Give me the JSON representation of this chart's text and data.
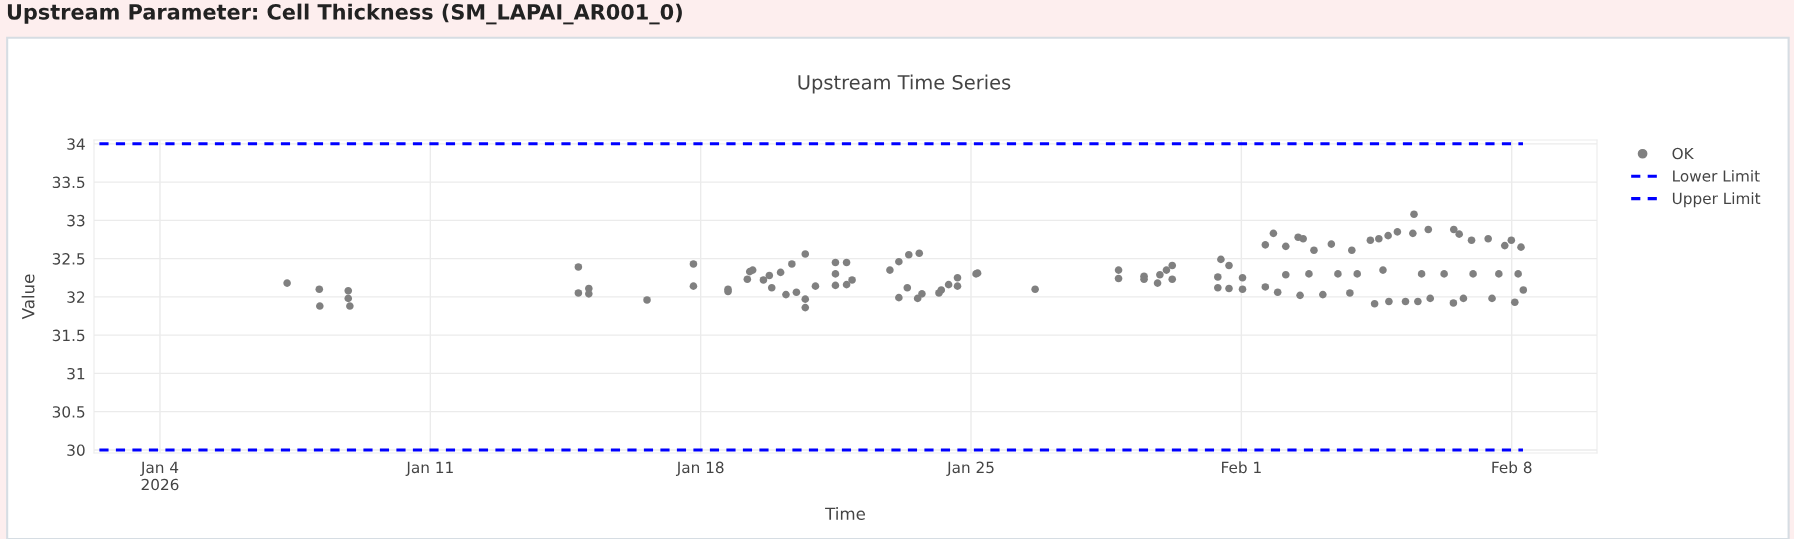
{
  "chart_data": {
    "type": "scatter",
    "title": "Upstream Parameter: Cell Thickness (SM_LAPAI_AR001_0)",
    "subtitle": "Upstream Time Series",
    "xlabel": "Time",
    "ylabel": "Value",
    "xlim": [
      "2026-01-02T07:00",
      "2026-02-10T05:00"
    ],
    "xticks": [
      {
        "value": "2026-01-04",
        "label": "Jan 4\n2026"
      },
      {
        "value": "2026-01-11",
        "label": "Jan 11"
      },
      {
        "value": "2026-01-18",
        "label": "Jan 18"
      },
      {
        "value": "2026-01-25",
        "label": "Jan 25"
      },
      {
        "value": "2026-02-01",
        "label": "Feb 1"
      },
      {
        "value": "2026-02-08",
        "label": "Feb 8"
      }
    ],
    "ylim": [
      29.96,
      34.05
    ],
    "yticks": [
      30,
      30.5,
      31,
      31.5,
      32,
      32.5,
      33,
      33.5,
      34
    ],
    "grid": true,
    "legend": "top right",
    "series": [
      {
        "name": "OK",
        "type": "scatter",
        "marker": "circle",
        "color": "#808080",
        "x": [
          "2026-01-07T07:00",
          "2026-01-08T03:00",
          "2026-01-08T03:20",
          "2026-01-08T21:00",
          "2026-01-08T21:00",
          "2026-01-08T22:00",
          "2026-01-14T20:00",
          "2026-01-14T20:00",
          "2026-01-15T02:30",
          "2026-01-15T02:30",
          "2026-01-16T14:40",
          "2026-01-17T19:30",
          "2026-01-17T19:30",
          "2026-01-18T17:00",
          "2026-01-18T17:00",
          "2026-01-19T05:00",
          "2026-01-19T06:30",
          "2026-01-19T08:20",
          "2026-01-19T15:00",
          "2026-01-19T18:40",
          "2026-01-19T20:10",
          "2026-01-20T01:40",
          "2026-01-20T05:00",
          "2026-01-20T08:40",
          "2026-01-20T11:30",
          "2026-01-20T17:00",
          "2026-01-20T17:00",
          "2026-01-20T17:00",
          "2026-01-20T23:20",
          "2026-01-21T11:45",
          "2026-01-21T11:45",
          "2026-01-21T11:45",
          "2026-01-21T18:40",
          "2026-01-21T18:40",
          "2026-01-21T22:05",
          "2026-01-22T21:36",
          "2026-01-23T03:10",
          "2026-01-23T03:10",
          "2026-01-23T09:20",
          "2026-01-23T15:50",
          "2026-01-23T14:50",
          "2026-01-23T17:30",
          "2026-01-23T08:24",
          "2026-01-24T04:05",
          "2026-01-24T05:31",
          "2026-01-24T10:05",
          "2026-01-24T15:36",
          "2026-01-24T15:36",
          "2026-01-25T03:07",
          "2026-01-25T04:05",
          "2026-01-26T15:50",
          "2026-01-28T19:41",
          "2026-01-28T19:41",
          "2026-01-29T11:31",
          "2026-01-29T11:31",
          "2026-01-29T19:55",
          "2026-01-29T21:22",
          "2026-01-30T01:26",
          "2026-01-30T05:02",
          "2026-01-30T05:02",
          "2026-01-31T11:17",
          "2026-01-31T09:22",
          "2026-01-31T09:22",
          "2026-01-31T16:19",
          "2026-01-31T16:19",
          "2026-02-01T00:43",
          "2026-02-01T00:43",
          "2026-02-01T14:53",
          "2026-02-01T14:53",
          "2026-02-01T19:55",
          "2026-02-01T22:34",
          "2026-02-02T03:36",
          "2026-02-02T03:36",
          "2026-02-02T11:17",
          "2026-02-02T12:29",
          "2026-02-02T14:24",
          "2026-02-02T21:07",
          "2026-02-03T02:38",
          "2026-02-03T07:55",
          "2026-02-03T19:26",
          "2026-02-03T20:38",
          "2026-02-04T08:10",
          "2026-02-04T10:48",
          "2026-02-04T13:26",
          "2026-02-04T19:12",
          "2026-02-04T19:41",
          "2026-02-05T00:58",
          "2026-02-05T06:00",
          "2026-02-05T10:34",
          "2026-02-05T11:17",
          "2026-02-05T13:41",
          "2026-02-05T20:10",
          "2026-02-05T21:22",
          "2026-02-06T11:46",
          "2026-02-06T12:00",
          "2026-02-06T15:22",
          "2026-02-06T18:00",
          "2026-02-06T23:02",
          "2026-02-07T09:22",
          "2026-02-07T11:46",
          "2026-02-07T19:41",
          "2026-02-07T23:46",
          "2026-02-08T01:55",
          "2026-02-08T05:46",
          "2026-02-08T07:12",
          "2026-02-02T18:00",
          "2026-02-03T12:00",
          "2026-02-04T00:00",
          "2026-02-04T16:00",
          "2026-02-05T16:00",
          "2026-02-06T06:00",
          "2026-02-07T00:00",
          "2026-02-07T16:00",
          "2026-02-08T04:00"
        ],
        "values": [
          32.18,
          32.1,
          31.88,
          32.08,
          31.98,
          31.88,
          32.39,
          32.05,
          32.11,
          32.04,
          31.96,
          32.43,
          32.14,
          32.1,
          32.07,
          32.23,
          32.33,
          32.35,
          32.22,
          32.28,
          32.12,
          32.32,
          32.03,
          32.43,
          32.06,
          32.56,
          31.86,
          31.97,
          32.14,
          32.45,
          32.3,
          32.15,
          32.45,
          32.16,
          32.22,
          32.35,
          32.46,
          31.99,
          32.55,
          32.57,
          31.98,
          32.04,
          32.12,
          32.05,
          32.09,
          32.16,
          32.25,
          32.14,
          32.3,
          32.31,
          32.1,
          32.35,
          32.24,
          32.27,
          32.23,
          32.18,
          32.29,
          32.35,
          32.41,
          32.23,
          32.49,
          32.26,
          32.12,
          32.41,
          32.11,
          32.25,
          32.1,
          32.68,
          32.13,
          32.83,
          32.06,
          32.66,
          32.29,
          32.78,
          32.02,
          32.76,
          32.61,
          32.03,
          32.69,
          32.05,
          32.61,
          32.74,
          31.91,
          32.76,
          32.8,
          31.94,
          32.85,
          31.94,
          32.83,
          33.08,
          31.94,
          32.88,
          31.98,
          31.92,
          32.88,
          32.82,
          31.98,
          32.74,
          32.76,
          31.98,
          32.67,
          32.74,
          31.93,
          32.65,
          32.09,
          32.3,
          32.3,
          32.3,
          32.35,
          32.3,
          32.3,
          32.3,
          32.3,
          32.3
        ]
      },
      {
        "name": "Lower Limit",
        "type": "line",
        "line_style": "dashed",
        "color": "#0000ff",
        "x": [
          "2026-01-02T07:00",
          "2026-02-08T07:00"
        ],
        "values": [
          30,
          30
        ]
      },
      {
        "name": "Upper Limit",
        "type": "line",
        "line_style": "dashed",
        "color": "#0000ff",
        "x": [
          "2026-01-02T07:00",
          "2026-02-08T07:00"
        ],
        "values": [
          34,
          34
        ]
      }
    ]
  }
}
